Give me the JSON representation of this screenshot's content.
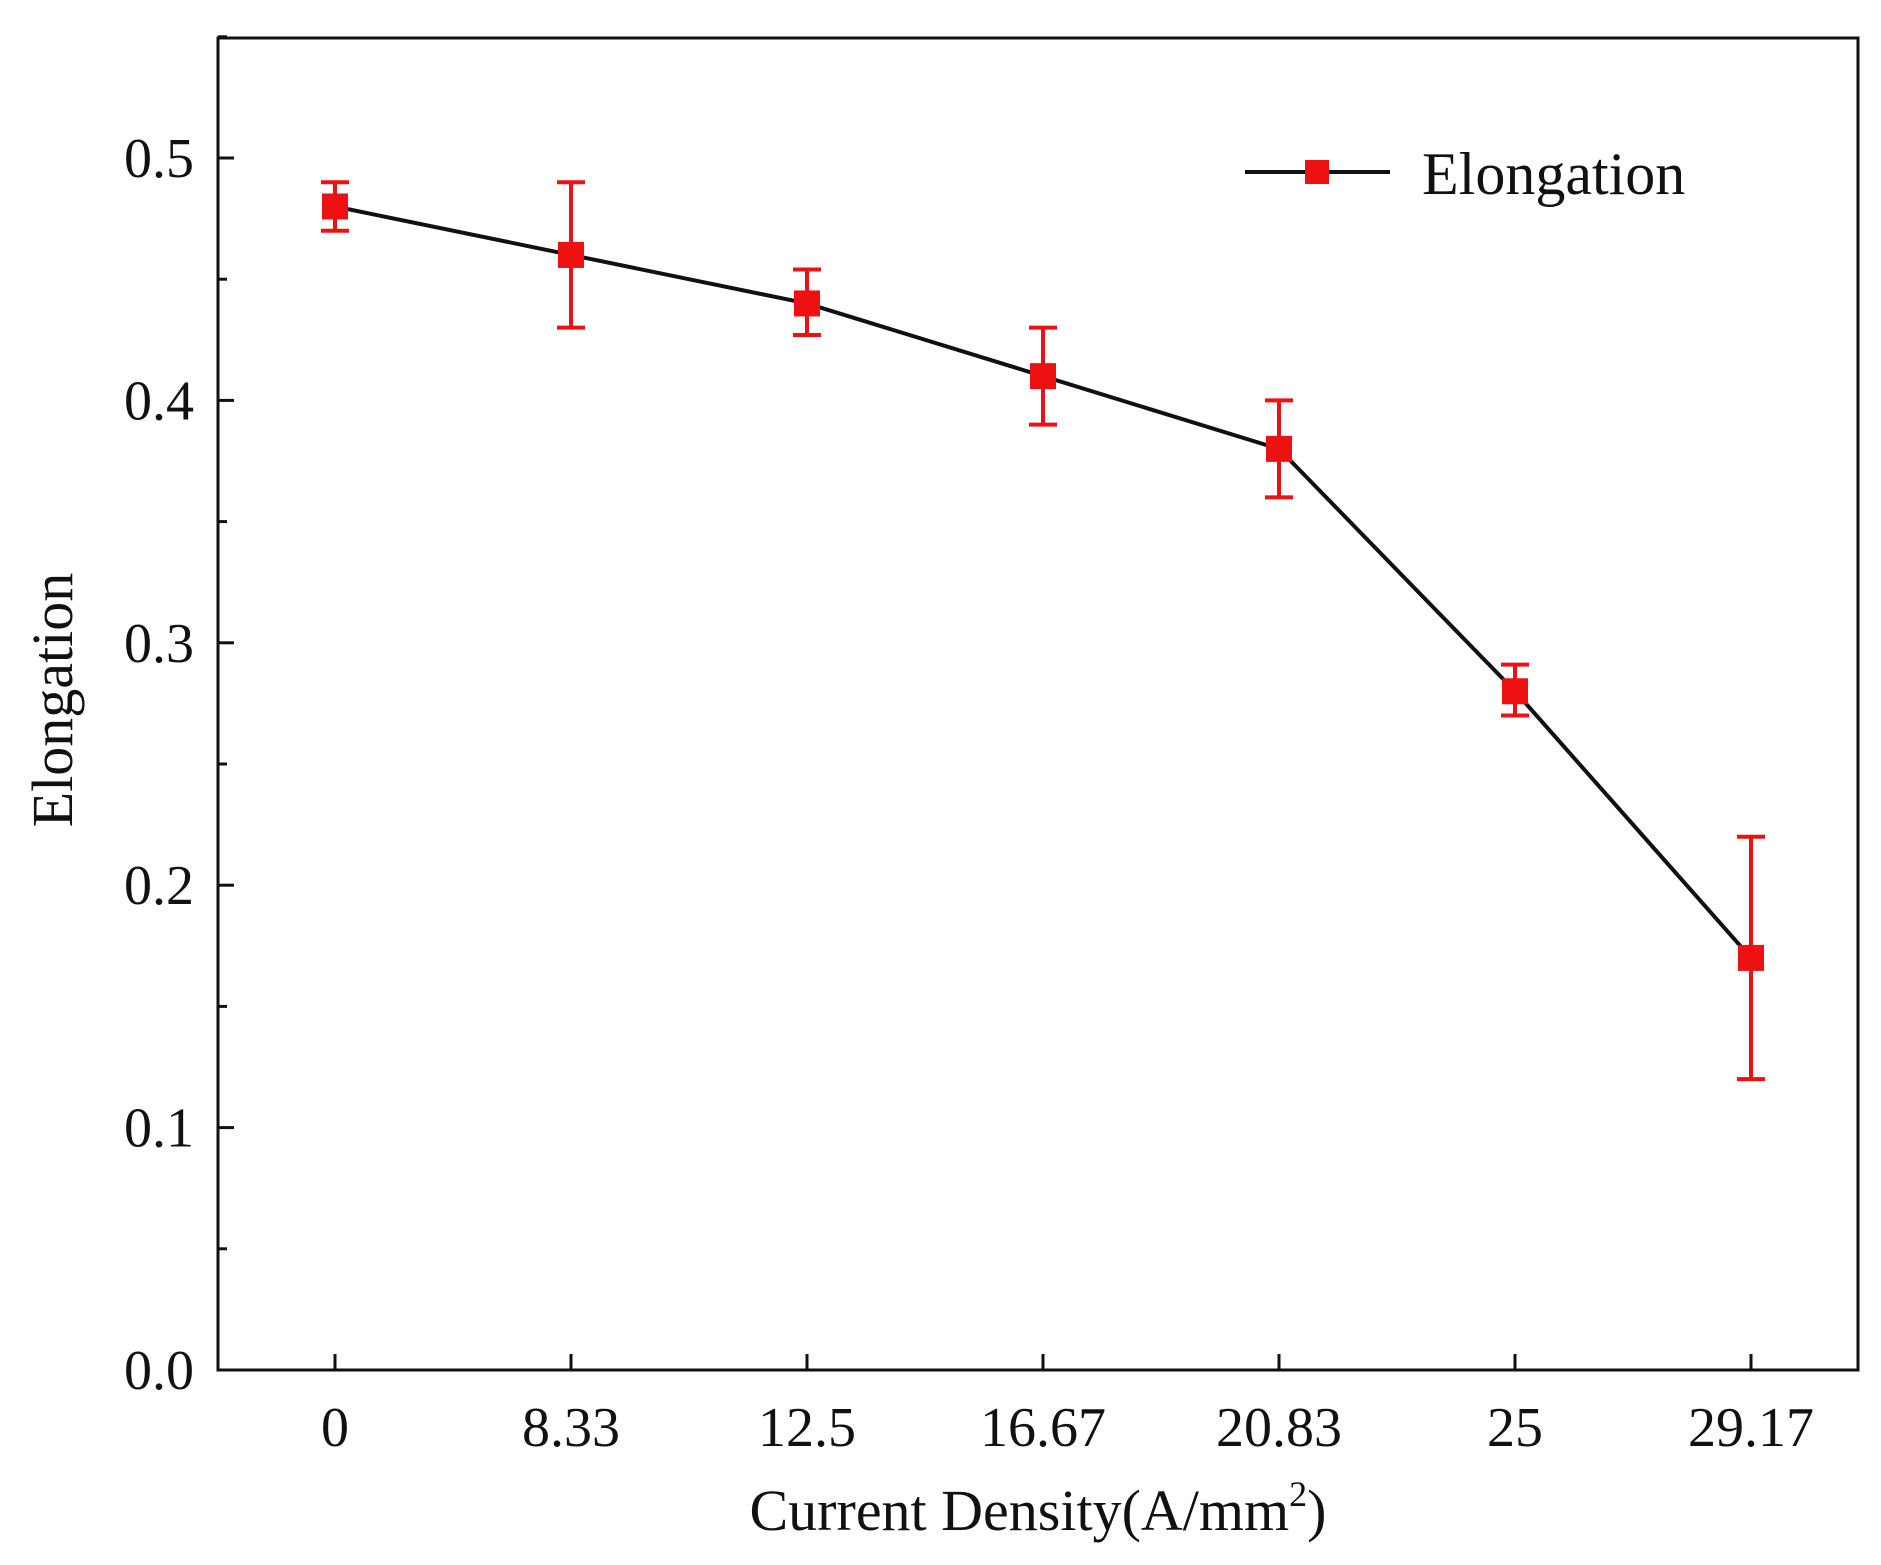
{
  "chart_data": {
    "type": "line",
    "title": "",
    "xlabel": "Current Density(A/mm",
    "xlabel_superscript": "2",
    "xlabel_close": ")",
    "ylabel": "Elongation",
    "categories": [
      "0",
      "8.33",
      "12.5",
      "16.67",
      "20.83",
      "25",
      "29.17"
    ],
    "ylim": [
      0.0,
      0.55
    ],
    "yticks": [
      0.0,
      0.1,
      0.2,
      0.3,
      0.4,
      0.5
    ],
    "ytick_labels": [
      "0.0",
      "0.1",
      "0.2",
      "0.3",
      "0.4",
      "0.5"
    ],
    "series": [
      {
        "name": "Elongation",
        "values": [
          0.48,
          0.46,
          0.44,
          0.41,
          0.38,
          0.28,
          0.17
        ],
        "error_low": [
          0.47,
          0.43,
          0.427,
          0.39,
          0.36,
          0.27,
          0.12
        ],
        "error_high": [
          0.49,
          0.49,
          0.454,
          0.43,
          0.4,
          0.291,
          0.22
        ],
        "line_color": "#111111",
        "marker_color": "#ee1111"
      }
    ],
    "legend": {
      "entries": [
        "Elongation"
      ],
      "position": "top-right"
    }
  }
}
